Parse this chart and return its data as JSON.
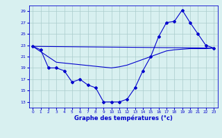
{
  "title": "Graphe des températures (°c)",
  "bg_color": "#d8f0f0",
  "grid_color": "#aacccc",
  "line_color": "#0000cc",
  "xlim": [
    -0.5,
    23.5
  ],
  "ylim": [
    12,
    30
  ],
  "yticks": [
    13,
    15,
    17,
    19,
    21,
    23,
    25,
    27,
    29
  ],
  "xticks": [
    0,
    1,
    2,
    3,
    4,
    5,
    6,
    7,
    8,
    9,
    10,
    11,
    12,
    13,
    14,
    15,
    16,
    17,
    18,
    19,
    20,
    21,
    22,
    23
  ],
  "series1_x": [
    0,
    1,
    2,
    3,
    4,
    5,
    6,
    7,
    8,
    9,
    10,
    11,
    12,
    13,
    14,
    15,
    16,
    17,
    18,
    19,
    20,
    21,
    22,
    23
  ],
  "series1_y": [
    22.8,
    22.2,
    19.0,
    19.0,
    18.5,
    16.5,
    17.0,
    16.0,
    15.5,
    13.0,
    13.0,
    13.0,
    13.5,
    15.5,
    18.5,
    21.0,
    24.5,
    27.0,
    27.2,
    29.2,
    27.0,
    25.0,
    23.0,
    22.5
  ],
  "series2_x": [
    0,
    23
  ],
  "series2_y": [
    22.8,
    22.5
  ],
  "series3_x": [
    0,
    3,
    10,
    11,
    12,
    13,
    14,
    15,
    16,
    17,
    18,
    19,
    20,
    21,
    22,
    23
  ],
  "series3_y": [
    22.8,
    20.0,
    19.0,
    19.2,
    19.5,
    20.0,
    20.5,
    21.0,
    21.5,
    22.0,
    22.2,
    22.3,
    22.4,
    22.4,
    22.4,
    22.5
  ]
}
